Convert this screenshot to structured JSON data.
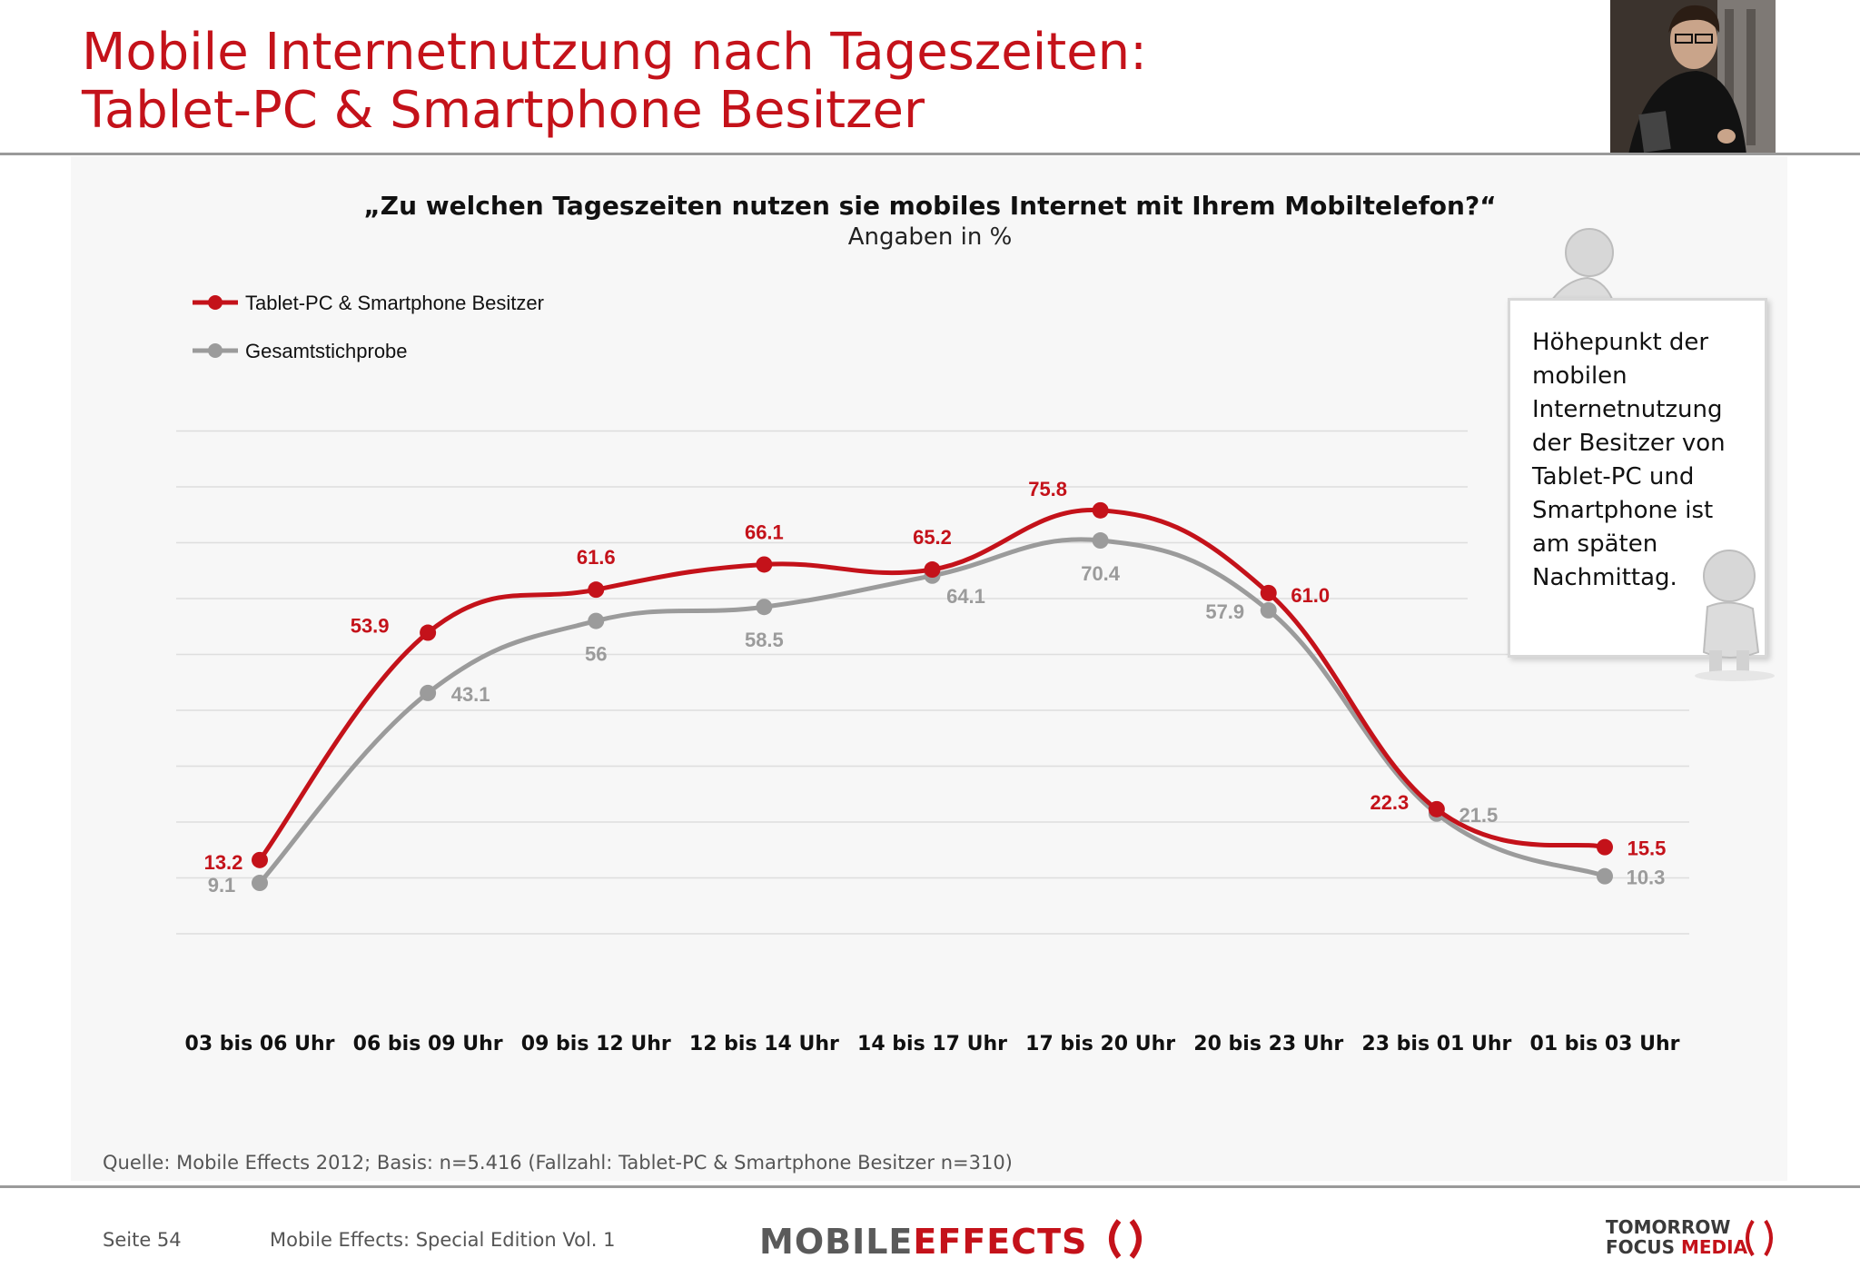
{
  "header": {
    "title_line1": "Mobile Internetnutzung nach Tageszeiten:",
    "title_line2": "Tablet-PC & Smartphone Besitzer"
  },
  "chart_data": {
    "type": "line",
    "title": "„Zu welchen Tageszeiten nutzen sie mobiles Internet mit Ihrem Mobiltelefon?“",
    "subtitle": "Angaben in %",
    "categories": [
      "03 bis 06 Uhr",
      "06 bis 09 Uhr",
      "09 bis 12 Uhr",
      "12 bis 14 Uhr",
      "14 bis 17 Uhr",
      "17 bis 20 Uhr",
      "20 bis 23 Uhr",
      "23 bis 01 Uhr",
      "01 bis 03 Uhr"
    ],
    "series": [
      {
        "name": "Tablet-PC & Smartphone Besitzer",
        "color": "#c4121a",
        "values": [
          13.2,
          53.9,
          61.6,
          66.1,
          65.2,
          75.8,
          61.0,
          22.3,
          15.5
        ],
        "labels": [
          "13.2",
          "53.9",
          "61.6",
          "66.1",
          "65.2",
          "75.8",
          "61.0",
          "22.3",
          "15.5"
        ]
      },
      {
        "name": "Gesamtstichprobe",
        "color": "#9b9b9b",
        "values": [
          9.1,
          43.1,
          56,
          58.5,
          64.1,
          70.4,
          57.9,
          21.5,
          10.3
        ],
        "labels": [
          "9.1",
          "43.1",
          "56",
          "58.5",
          "64.1",
          "70.4",
          "57.9",
          "21.5",
          "10.3"
        ]
      }
    ],
    "ylim": [
      0,
      80
    ],
    "grid": true,
    "legend": "top-left",
    "xlabel": "",
    "ylabel": ""
  },
  "callout": {
    "lines": [
      "Höhepunkt der",
      "mobilen",
      "Internetnutzung",
      "der Besitzer von",
      "Tablet-PC und",
      "Smartphone ist",
      "am späten",
      "Nachmittag."
    ]
  },
  "footer": {
    "source": "Quelle: Mobile Effects 2012; Basis: n=5.416 (Fallzahl: Tablet-PC & Smartphone Besitzer n=310)",
    "page": "Seite 54",
    "edition": "Mobile Effects: Special Edition Vol. 1",
    "logo_left_a": "MOBILE",
    "logo_left_b": "EFFECTS",
    "logo_right_line1": "TOMORROW",
    "logo_right_line2a": "FOCUS",
    "logo_right_line2b": "MEDIA"
  },
  "colors": {
    "brand_red": "#c4121a",
    "grey": "#9b9b9b"
  }
}
